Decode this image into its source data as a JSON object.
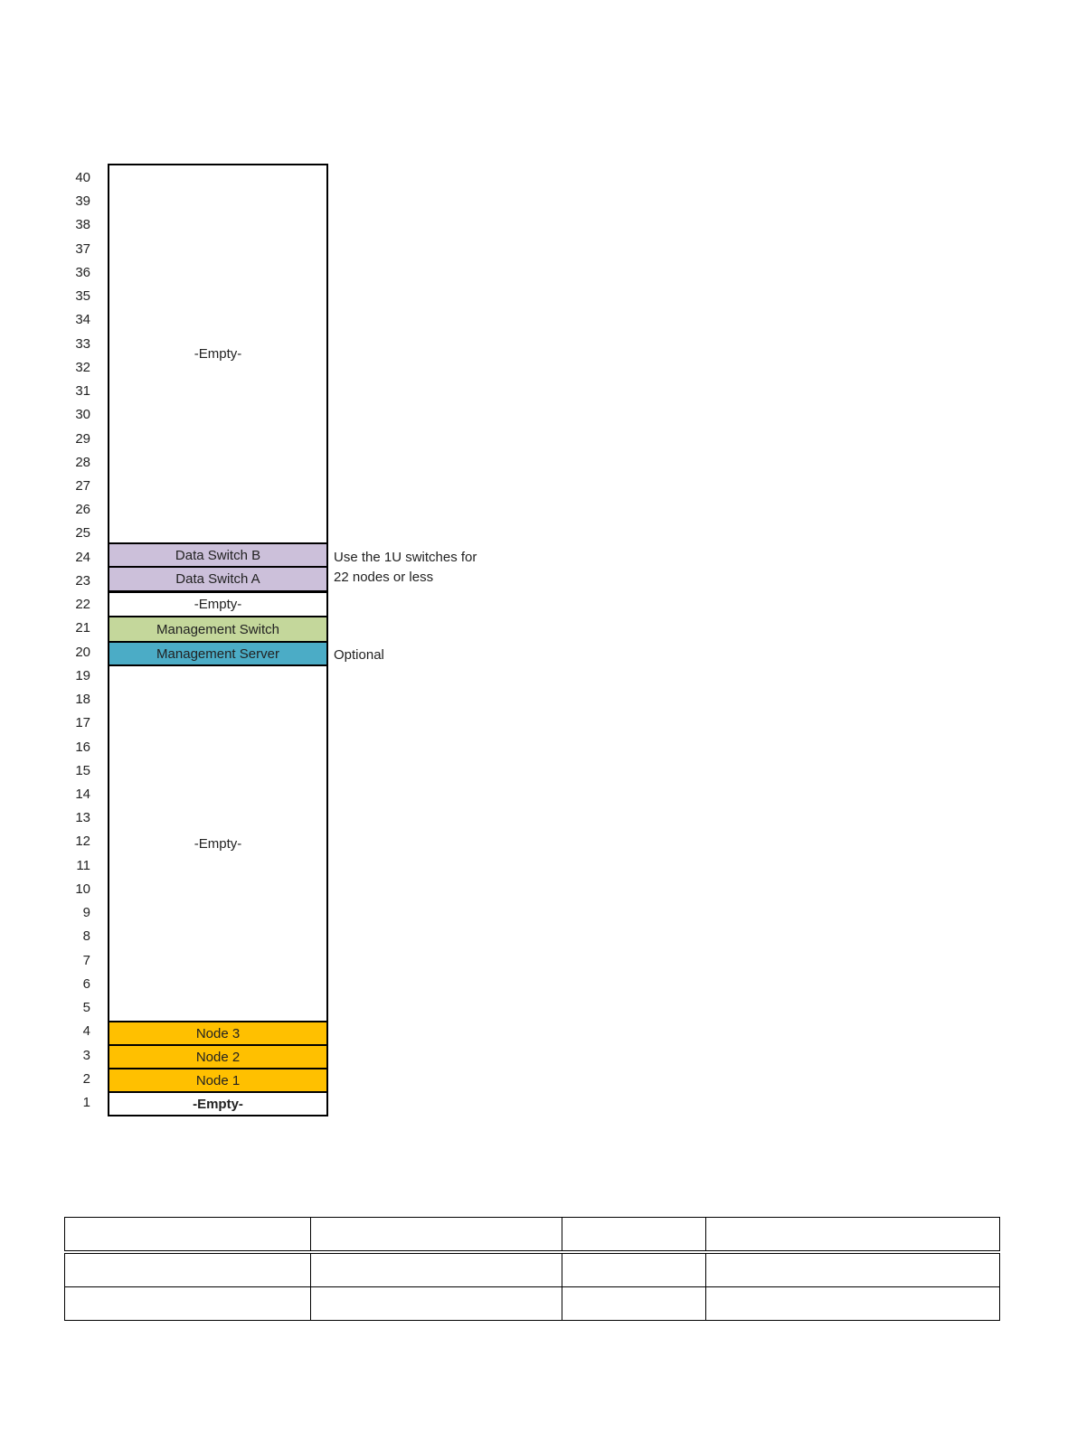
{
  "rack": {
    "units": [
      40,
      39,
      38,
      37,
      36,
      35,
      34,
      33,
      32,
      31,
      30,
      29,
      28,
      27,
      26,
      25,
      24,
      23,
      22,
      21,
      20,
      19,
      18,
      17,
      16,
      15,
      14,
      13,
      12,
      11,
      10,
      9,
      8,
      7,
      6,
      5,
      4,
      3,
      2,
      1
    ],
    "slots": [
      {
        "label": "-Empty-",
        "color": "#ffffff"
      },
      {
        "label": "Data Switch B",
        "color": "#ccc0da"
      },
      {
        "label": "Data Switch A",
        "color": "#ccc0da"
      },
      {
        "label": "-Empty-",
        "color": "#ffffff"
      },
      {
        "label": "Management Switch",
        "color": "#c4d79b"
      },
      {
        "label": "Management Server",
        "color": "#4bacc6"
      },
      {
        "label": "-Empty-",
        "color": "#ffffff"
      },
      {
        "label": "Node 3",
        "color": "#ffc000"
      },
      {
        "label": "Node 2",
        "color": "#ffc000"
      },
      {
        "label": "Node 1",
        "color": "#ffc000"
      },
      {
        "label": "-Empty-",
        "color": "#ffffff"
      }
    ],
    "notes": [
      {
        "lines": [
          "Use the 1U switches for",
          "22 nodes or less"
        ]
      },
      {
        "lines": [
          "Optional"
        ]
      }
    ]
  }
}
